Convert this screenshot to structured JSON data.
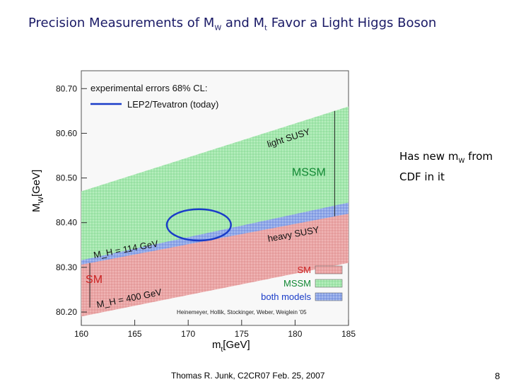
{
  "slide": {
    "title_pre": "Precision Measurements of M",
    "title_w_sub": "W",
    "title_mid": " and M",
    "title_t_sub": "t",
    "title_post": " Favor a Light Higgs Boson",
    "note_pre": "Has new m",
    "note_sub": "W",
    "note_post": " from CDF in it",
    "footer": "Thomas R. Junk, C2CR07 Feb. 25, 2007",
    "page_number": "8"
  },
  "chart_data": {
    "type": "area",
    "xlabel_main": "m",
    "xlabel_sub": "t",
    "xlabel_unit": "[GeV]",
    "ylabel_main": "M",
    "ylabel_sub": "W",
    "ylabel_unit": "[GeV]",
    "xlim": [
      160,
      185
    ],
    "ylim": [
      80.17,
      80.74
    ],
    "x_ticks": [
      160,
      165,
      170,
      175,
      180,
      185
    ],
    "x_tick_labels": [
      "160",
      "165",
      "170",
      "175",
      "180",
      "185"
    ],
    "y_ticks": [
      80.2,
      80.3,
      80.4,
      80.5,
      80.6,
      80.7
    ],
    "y_tick_labels": [
      "80.20",
      "80.30",
      "80.40",
      "80.50",
      "80.60",
      "80.70"
    ],
    "legend_header": "experimental errors 68% CL:",
    "legend_line_label": "LEP2/Tevatron (today)",
    "band_legend": [
      {
        "label": "SM",
        "color": "#e8a0a0"
      },
      {
        "label": "MSSM",
        "color": "#9fe0a8"
      },
      {
        "label": "both models",
        "color": "#8fa8e8"
      }
    ],
    "bands": {
      "SM": {
        "x": [
          160,
          185
        ],
        "lower": [
          80.19,
          80.31
        ],
        "upper": [
          80.31,
          80.44
        ]
      },
      "MSSM": {
        "x": [
          160,
          185
        ],
        "lower": [
          80.31,
          80.42
        ],
        "upper": [
          80.47,
          80.66
        ]
      },
      "both": {
        "x": [
          160,
          185
        ],
        "lower": [
          80.306,
          80.42
        ],
        "upper": [
          80.316,
          80.445
        ]
      }
    },
    "ellipse": {
      "cx": 171.0,
      "cy": 80.395,
      "rx": 3.0,
      "ry": 0.035,
      "color": "#1a3cc8"
    },
    "annotations": {
      "light_susy": "light SUSY",
      "heavy_susy": "heavy SUSY",
      "mssm_label": "MSSM",
      "sm_label": "SM",
      "mh_low": "M_H = 114 GeV",
      "mh_high": "M_H = 400 GeV"
    },
    "credit": "Heinemeyer, Hollik, Stockinger, Weber, Weiglein '05"
  }
}
